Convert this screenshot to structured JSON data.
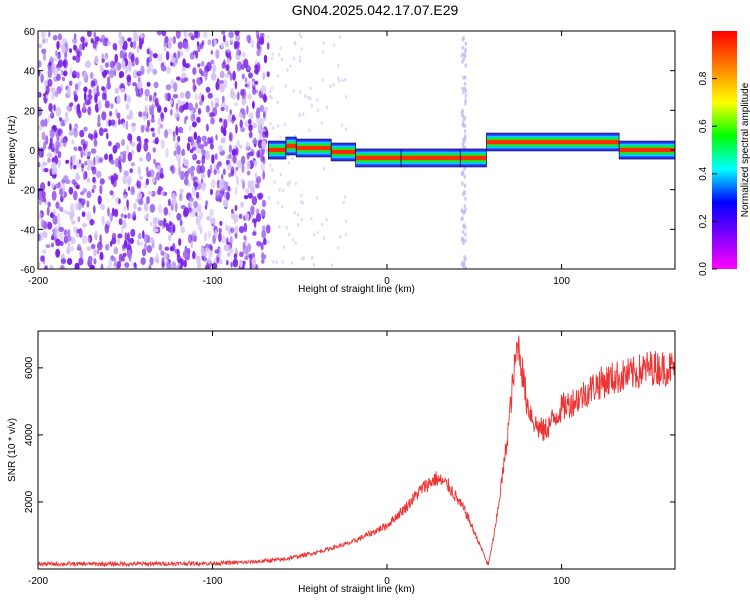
{
  "title": "GN04.2025.042.17.07.E29",
  "colors": {
    "snr_line": "#ee3333",
    "scatter_purple": "#7a2cf0",
    "axis": "#000000"
  },
  "chart_data": [
    {
      "type": "heatmap",
      "title": "GN04.2025.042.17.07.E29",
      "xlabel": "Height of straight line (km)",
      "ylabel": "Frequency (Hz)",
      "xlim": [
        -200,
        165
      ],
      "ylim": [
        -60,
        60
      ],
      "xticks": [
        -200,
        -100,
        0,
        100
      ],
      "yticks": [
        -60,
        -40,
        -20,
        0,
        20,
        40,
        60
      ],
      "colorbar": {
        "label": "Normalized spectral amplitude",
        "range": [
          0.0,
          1.0
        ],
        "ticks": [
          "0.0",
          "0.2",
          "0.4",
          "0.6",
          "0.8"
        ],
        "colormap": [
          "#ff00ff",
          "#8000ff",
          "#0000ff",
          "#00ffff",
          "#00ff00",
          "#ffff00",
          "#ff8000",
          "#ff0000"
        ]
      },
      "noise_region": {
        "x": [
          -200,
          -68
        ],
        "y": [
          -60,
          60
        ],
        "amplitude": "low"
      },
      "ridge_segments": [
        {
          "x": [
            -68,
            -58
          ],
          "freq": 0
        },
        {
          "x": [
            -58,
            -52
          ],
          "freq": 2
        },
        {
          "x": [
            -52,
            -32
          ],
          "freq": 1
        },
        {
          "x": [
            -32,
            -18
          ],
          "freq": -1
        },
        {
          "x": [
            -18,
            8
          ],
          "freq": -4
        },
        {
          "x": [
            8,
            42
          ],
          "freq": -4
        },
        {
          "x": [
            42,
            57
          ],
          "freq": -4
        },
        {
          "x": [
            57,
            133
          ],
          "freq": 4
        },
        {
          "x": [
            133,
            165
          ],
          "freq": 0
        }
      ],
      "sparse_column": {
        "x": 44,
        "y": [
          -60,
          60
        ]
      }
    },
    {
      "type": "line",
      "xlabel": "Height of straight line (km)",
      "ylabel": "SNR (10 * v/v)",
      "xlim": [
        -200,
        165
      ],
      "ylim": [
        0,
        7100
      ],
      "xticks": [
        -200,
        -100,
        0,
        100
      ],
      "yticks": [
        2000,
        4000,
        6000
      ],
      "series": [
        {
          "x": [
            -200,
            -150,
            -100,
            -80,
            -60,
            -40,
            -20,
            0,
            10,
            20,
            28,
            35,
            45,
            55,
            58,
            62,
            68,
            72,
            75,
            80,
            85,
            90,
            100,
            110,
            120,
            130,
            140,
            150,
            165
          ],
          "y": [
            150,
            150,
            170,
            200,
            280,
            500,
            800,
            1300,
            1800,
            2400,
            2700,
            2500,
            1700,
            500,
            100,
            1200,
            3500,
            5500,
            6800,
            5000,
            4300,
            4100,
            4800,
            5100,
            5500,
            5700,
            5800,
            6000,
            6000
          ]
        }
      ]
    }
  ]
}
